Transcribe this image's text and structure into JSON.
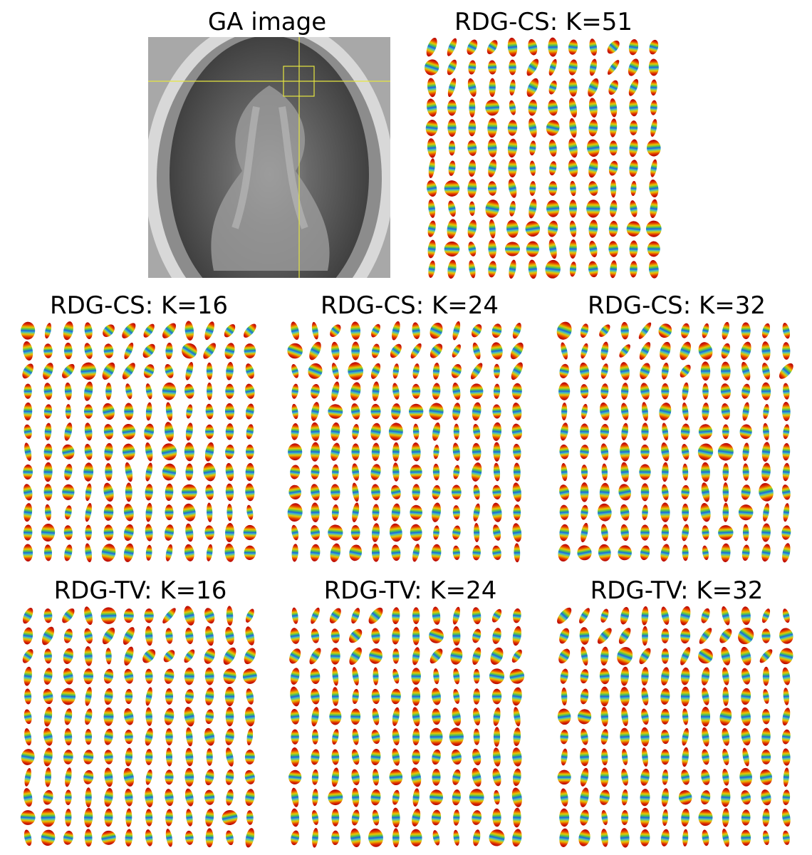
{
  "panels": [
    {
      "title": "GA image"
    },
    {
      "title": "RDG-CS: K=51"
    },
    {
      "title": "RDG-CS: K=16"
    },
    {
      "title": "RDG-CS: K=24"
    },
    {
      "title": "RDG-CS: K=32"
    },
    {
      "title": "RDG-TV: K=16"
    },
    {
      "title": "RDG-TV: K=24"
    },
    {
      "title": "RDG-TV: K=32"
    }
  ]
}
